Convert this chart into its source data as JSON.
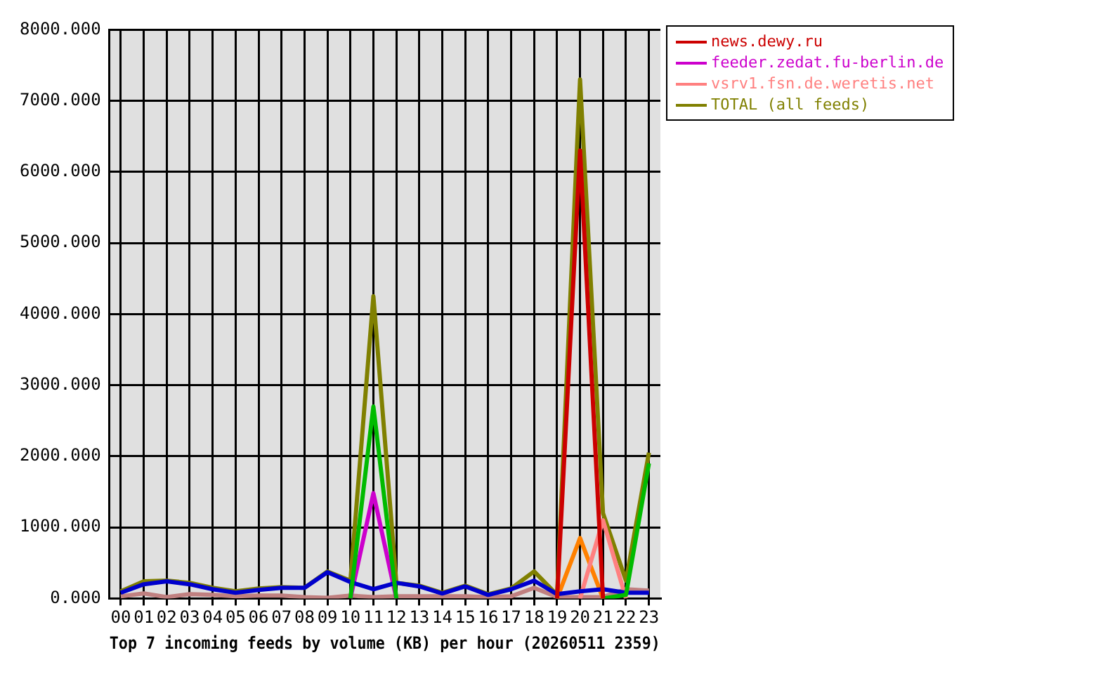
{
  "chart_data": {
    "type": "line",
    "xlabel": "Top 7 incoming feeds by volume (KB) per hour (20260511 2359)",
    "categories": [
      "00",
      "01",
      "02",
      "03",
      "04",
      "05",
      "06",
      "07",
      "08",
      "09",
      "10",
      "11",
      "12",
      "13",
      "14",
      "15",
      "16",
      "17",
      "18",
      "19",
      "20",
      "21",
      "22",
      "23"
    ],
    "series": [
      {
        "name": "news.dewy.ru",
        "color": "#cc0000",
        "values": [
          null,
          null,
          null,
          null,
          null,
          null,
          null,
          null,
          null,
          null,
          null,
          null,
          null,
          null,
          null,
          null,
          null,
          null,
          null,
          0,
          6300,
          0,
          null,
          null
        ]
      },
      {
        "color": "#00bb00",
        "values": [
          null,
          null,
          null,
          null,
          null,
          null,
          null,
          null,
          null,
          null,
          0,
          2700,
          0,
          null,
          null,
          null,
          null,
          null,
          null,
          null,
          null,
          0,
          50,
          1900
        ]
      },
      {
        "color": "#0000cc",
        "values": [
          80,
          200,
          240,
          200,
          130,
          80,
          120,
          150,
          150,
          370,
          230,
          130,
          220,
          170,
          70,
          170,
          50,
          130,
          250,
          60,
          100,
          130,
          80,
          80
        ]
      },
      {
        "name": "feeder.zedat.fu-berlin.de",
        "color": "#cc00cc",
        "values": [
          null,
          null,
          null,
          null,
          null,
          null,
          null,
          null,
          null,
          null,
          0,
          1480,
          0,
          null,
          null,
          null,
          null,
          null,
          null,
          null,
          null,
          null,
          null,
          null
        ]
      },
      {
        "name": "vsrv1.fsn.de.weretis.net",
        "color": "#ff8080",
        "values": [
          null,
          null,
          null,
          null,
          null,
          null,
          null,
          null,
          null,
          null,
          null,
          null,
          null,
          null,
          null,
          null,
          null,
          null,
          null,
          null,
          0,
          1100,
          0,
          null
        ]
      },
      {
        "color": "#ff8000",
        "values": [
          null,
          null,
          null,
          null,
          null,
          null,
          null,
          null,
          null,
          null,
          null,
          null,
          null,
          null,
          null,
          null,
          null,
          null,
          null,
          0,
          850,
          0,
          null,
          null
        ]
      },
      {
        "color": "#c08080",
        "values": [
          30,
          70,
          20,
          60,
          50,
          30,
          40,
          40,
          20,
          10,
          40,
          20,
          30,
          30,
          30,
          30,
          20,
          30,
          150,
          20,
          20,
          20,
          130,
          110
        ]
      },
      {
        "name": "TOTAL (all feeds)",
        "color": "#808000",
        "values": [
          100,
          240,
          250,
          220,
          150,
          100,
          140,
          160,
          150,
          380,
          250,
          4250,
          220,
          180,
          80,
          180,
          60,
          140,
          380,
          50,
          7300,
          1200,
          250,
          2050
        ]
      }
    ],
    "ylim": [
      0,
      8000
    ],
    "yticks": [
      {
        "value": 0,
        "label": "0.000"
      },
      {
        "value": 1000,
        "label": "1000.000"
      },
      {
        "value": 2000,
        "label": "2000.000"
      },
      {
        "value": 3000,
        "label": "3000.000"
      },
      {
        "value": 4000,
        "label": "4000.000"
      },
      {
        "value": 5000,
        "label": "5000.000"
      },
      {
        "value": 6000,
        "label": "6000.000"
      },
      {
        "value": 7000,
        "label": "7000.000"
      },
      {
        "value": 8000,
        "label": "8000.000"
      }
    ],
    "grid": true,
    "legend": "right"
  }
}
